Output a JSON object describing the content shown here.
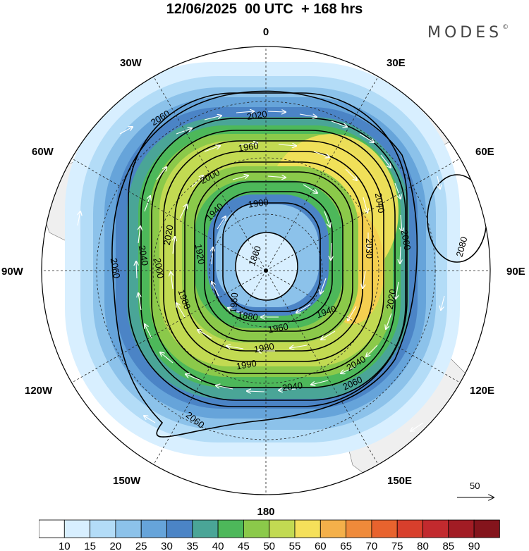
{
  "title": "12/06/2025  00 UTC  + 168 hrs",
  "brand": {
    "name": "MODES",
    "mark": "©"
  },
  "longitude_labels": {
    "lon_0": "0",
    "lon_30e": "30E",
    "lon_60e": "60E",
    "lon_90e": "90E",
    "lon_120e": "120E",
    "lon_150e": "150E",
    "lon_180": "180",
    "lon_150w": "150W",
    "lon_120w": "120W",
    "lon_90w": "90W",
    "lon_60w": "60W",
    "lon_30w": "30W"
  },
  "contours": {
    "c1": "2060",
    "c2": "2020",
    "c3": "1960",
    "c4": "2000",
    "c5": "1900",
    "c6": "1940",
    "c7": "2040",
    "c8": "2060",
    "c9": "2080",
    "c10": "2030",
    "c11": "2040",
    "c12": "1920",
    "c13": "1860",
    "c14": "2020",
    "c15": "1880",
    "c16": "1960",
    "c17": "1940",
    "c18": "1980",
    "c19": "1990",
    "c20": "2020",
    "c21": "2040",
    "c22": "2060",
    "c23": "2060",
    "c24": "2060",
    "c25": "2040",
    "c26": "2000",
    "c27": "1980",
    "c28": "1960"
  },
  "legend": {
    "ref_vector": "50",
    "colorbar_labels": [
      "10",
      "15",
      "20",
      "25",
      "30",
      "35",
      "40",
      "45",
      "50",
      "55",
      "60",
      "65",
      "70",
      "75",
      "80",
      "85",
      "90"
    ],
    "colorbar_colors": [
      "#ffffff",
      "#d8efff",
      "#b3dcf7",
      "#8cc2ea",
      "#66a4da",
      "#4b84c6",
      "#4aa597",
      "#4db85a",
      "#8bc94a",
      "#c2da52",
      "#f5e05a",
      "#f4b04a",
      "#ef8a3a",
      "#e8632e",
      "#d83f2c",
      "#c22a2e",
      "#a21c24",
      "#84141c"
    ]
  }
}
